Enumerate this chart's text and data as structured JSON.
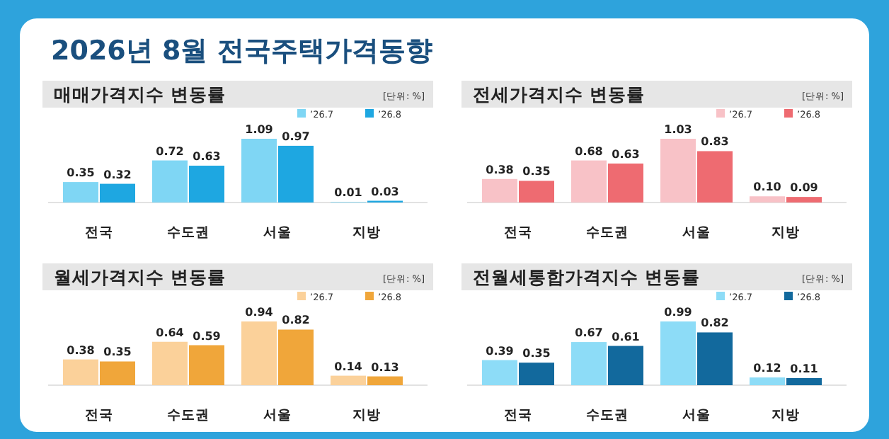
{
  "chart_data": [
    {
      "type": "other",
      "title": "2026년 8월 전국주택가격동향"
    },
    {
      "type": "bar",
      "title": "매매가격지수 변동률",
      "annotations": [
        "[단위: %]"
      ],
      "legend": "top right",
      "categories": [
        "전국",
        "수도권",
        "서울",
        "지방"
      ],
      "series": [
        {
          "name": "’26.7",
          "color": "#7fd6f4",
          "values": [
            0.35,
            0.72,
            1.09,
            0.01
          ],
          "value_labels": [
            "0.35",
            "0.72",
            "1.09",
            "0.01"
          ]
        },
        {
          "name": "’26.8",
          "color": "#1ea7e1",
          "values": [
            0.32,
            0.63,
            0.97,
            0.03
          ],
          "value_labels": [
            "0.32",
            "0.63",
            "0.97",
            "0.03"
          ]
        }
      ]
    },
    {
      "type": "bar",
      "title": "전세가격지수 변동률",
      "annotations": [
        "[단위: %]"
      ],
      "legend": "top right",
      "categories": [
        "전국",
        "수도권",
        "서울",
        "지방"
      ],
      "series": [
        {
          "name": "’26.7",
          "color": "#f8c2c7",
          "values": [
            0.38,
            0.68,
            1.03,
            0.1
          ],
          "value_labels": [
            "0.38",
            "0.68",
            "1.03",
            "0.10"
          ]
        },
        {
          "name": "’26.8",
          "color": "#ee6b71",
          "values": [
            0.35,
            0.63,
            0.83,
            0.09
          ],
          "value_labels": [
            "0.35",
            "0.63",
            "0.83",
            "0.09"
          ]
        }
      ]
    },
    {
      "type": "bar",
      "title": "월세가격지수 변동률",
      "annotations": [
        "[단위: %]"
      ],
      "legend": "top right",
      "categories": [
        "전국",
        "수도권",
        "서울",
        "지방"
      ],
      "series": [
        {
          "name": "’26.7",
          "color": "#fbd19a",
          "values": [
            0.38,
            0.64,
            0.94,
            0.14
          ],
          "value_labels": [
            "0.38",
            "0.64",
            "0.94",
            "0.14"
          ]
        },
        {
          "name": "’26.8",
          "color": "#f0a63a",
          "values": [
            0.35,
            0.59,
            0.82,
            0.13
          ],
          "value_labels": [
            "0.35",
            "0.59",
            "0.82",
            "0.13"
          ]
        }
      ]
    },
    {
      "type": "bar",
      "title": "전월세통합가격지수 변동률",
      "annotations": [
        "[단위: %]"
      ],
      "legend": "top right",
      "categories": [
        "전국",
        "수도권",
        "서울",
        "지방"
      ],
      "series": [
        {
          "name": "’26.7",
          "color": "#8ddcf7",
          "values": [
            0.39,
            0.67,
            0.99,
            0.12
          ],
          "value_labels": [
            "0.39",
            "0.67",
            "0.99",
            "0.12"
          ]
        },
        {
          "name": "’26.8",
          "color": "#12699d",
          "values": [
            0.35,
            0.61,
            0.82,
            0.11
          ],
          "value_labels": [
            "0.35",
            "0.61",
            "0.82",
            "0.11"
          ]
        }
      ]
    }
  ]
}
